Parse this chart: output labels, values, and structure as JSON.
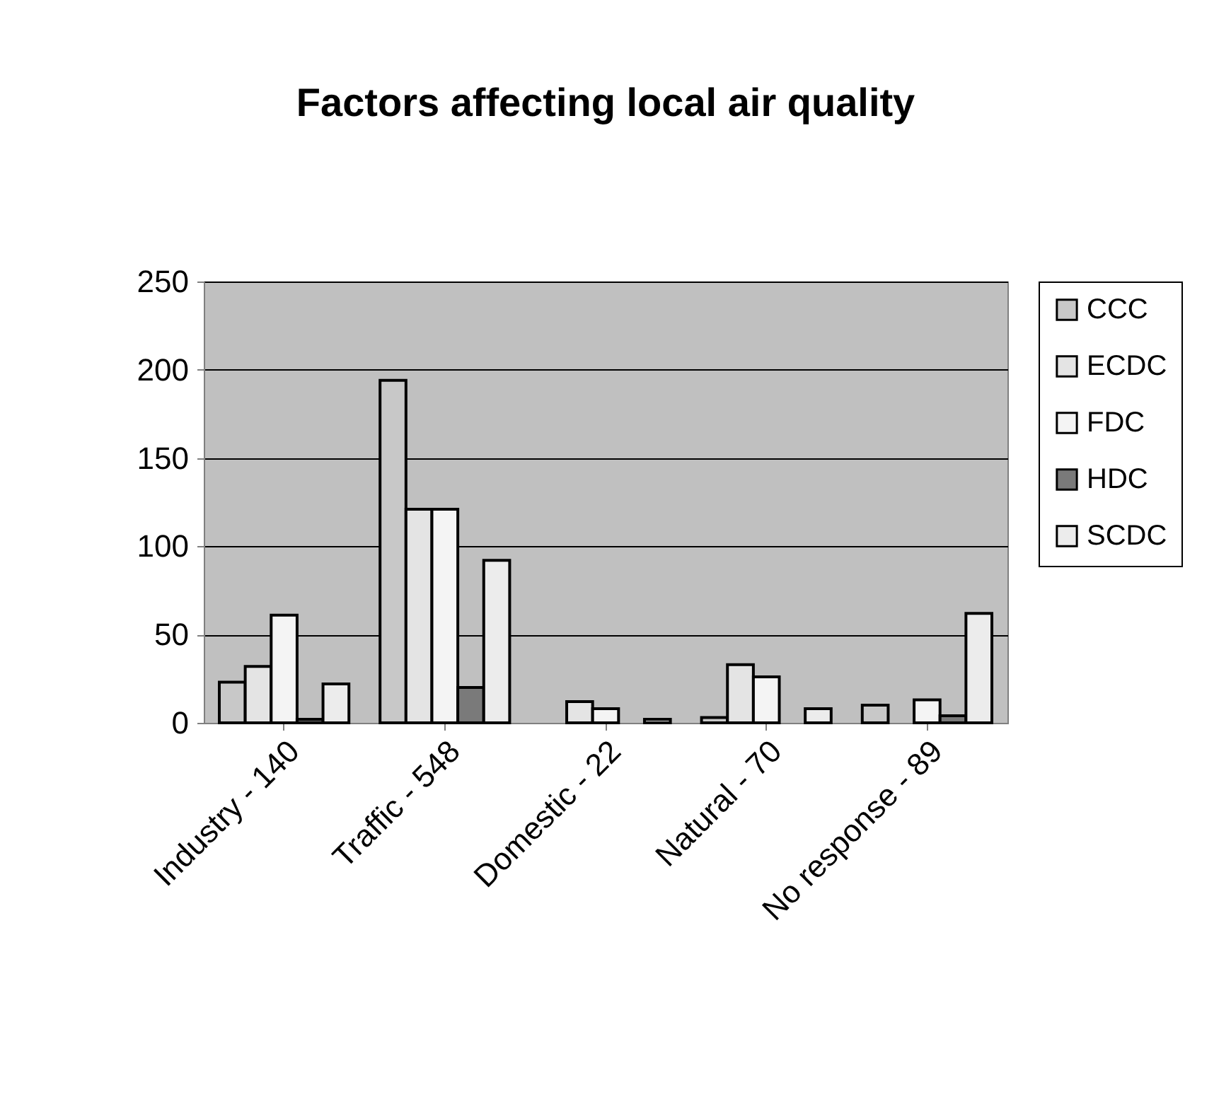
{
  "chart_data": {
    "type": "bar",
    "title": "Factors affecting local air quality",
    "categories": [
      "Industry - 140",
      "Traffic - 548",
      "Domestic - 22",
      "Natural - 70",
      "No response - 89"
    ],
    "series": [
      {
        "name": "CCC",
        "color": "#c8c8c8",
        "values": [
          23,
          194,
          null,
          3,
          10
        ]
      },
      {
        "name": "ECDC",
        "color": "#e4e4e4",
        "values": [
          32,
          121,
          12,
          33,
          null
        ]
      },
      {
        "name": "FDC",
        "color": "#f4f4f4",
        "values": [
          61,
          121,
          8,
          26,
          13
        ]
      },
      {
        "name": "HDC",
        "color": "#7a7a7a",
        "values": [
          2,
          20,
          null,
          null,
          4
        ]
      },
      {
        "name": "SCDC",
        "color": "#ececec",
        "values": [
          22,
          92,
          2,
          8,
          62
        ]
      }
    ],
    "ylim": [
      0,
      250
    ],
    "yticks": [
      0,
      50,
      100,
      150,
      200,
      250
    ],
    "grid": "y",
    "legend": "right"
  }
}
